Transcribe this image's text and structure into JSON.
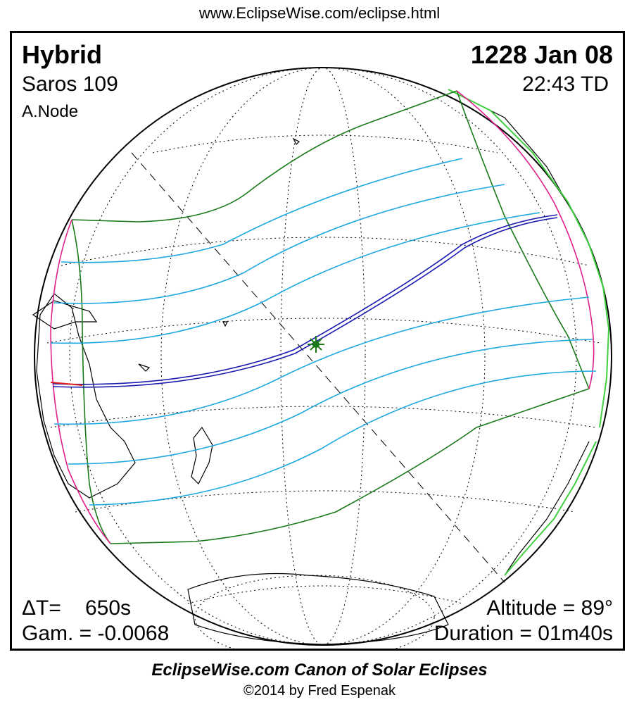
{
  "header": {
    "url": "www.EclipseWise.com/eclipse.html"
  },
  "eclipse": {
    "type": "Hybrid",
    "saros": "Saros 109",
    "node": "A.Node",
    "date": "1228 Jan 08",
    "time": "22:43 TD"
  },
  "stats": {
    "delta_t_label": "ΔT=",
    "delta_t_value": "650s",
    "gamma": "Gam. = -0.0068",
    "altitude": "Altitude = 89°",
    "duration": "Duration = 01m40s"
  },
  "footer": {
    "title": "EclipseWise.com Canon of Solar Eclipses",
    "copyright": "©2014 by Fred Espenak"
  },
  "colors": {
    "central_path": "#1a1ab0",
    "partial_lines": "#1ea8e0",
    "penumbra_limits": "#1a7a1a",
    "rise_set": "#e0208c",
    "coast": "#000000",
    "land_highlight": "#40d040",
    "greatest_eclipse_marker": "#1a7a1a",
    "path_start": "#e02020"
  }
}
